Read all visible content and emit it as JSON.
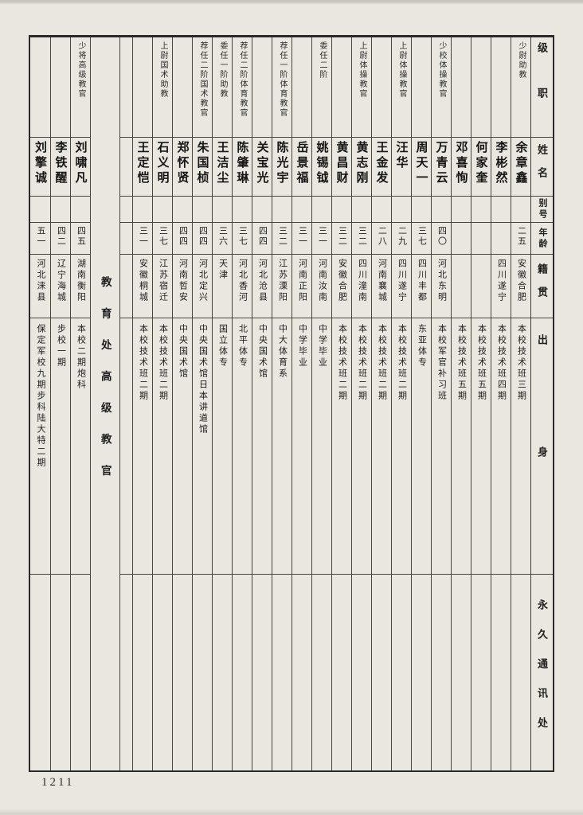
{
  "page": {
    "number": "1211"
  },
  "section_label": "教育处高级教官",
  "header": {
    "rank": "级职",
    "name": "姓名",
    "alias": "别号",
    "age": "年龄",
    "native": "籍贯",
    "origin": "出身",
    "address": "永久通讯处"
  },
  "table": {
    "columns": [
      {
        "type": "header"
      },
      {
        "type": "person",
        "rank": "少尉助教",
        "name": "余章鑫",
        "alias": "",
        "age": "二五",
        "native": "安徽合肥",
        "origin": "本校技术班三期",
        "address": ""
      },
      {
        "type": "person",
        "rank": "",
        "name": "李彬然",
        "alias": "",
        "age": "",
        "native": "四川遂宁",
        "origin": "本校技术班四期",
        "address": ""
      },
      {
        "type": "person",
        "rank": "",
        "name": "何家奎",
        "alias": "",
        "age": "",
        "native": "",
        "origin": "本校技术班五期",
        "address": ""
      },
      {
        "type": "person",
        "rank": "",
        "name": "邓喜恂",
        "alias": "",
        "age": "",
        "native": "",
        "origin": "本校技术班五期",
        "address": ""
      },
      {
        "type": "person",
        "rank": "少校体操教官",
        "name": "万青云",
        "alias": "",
        "age": "四〇",
        "native": "河北东明",
        "origin": "本校军官补习班",
        "address": ""
      },
      {
        "type": "person",
        "rank": "",
        "name": "周天一",
        "alias": "",
        "age": "三七",
        "native": "四川丰都",
        "origin": "东亚体专",
        "address": ""
      },
      {
        "type": "person",
        "rank": "上尉体操教官",
        "name": "汪华",
        "alias": "",
        "age": "二九",
        "native": "四川遂宁",
        "origin": "本校技术班二期",
        "address": ""
      },
      {
        "type": "person",
        "rank": "",
        "name": "王金发",
        "alias": "",
        "age": "二八",
        "native": "河南襄城",
        "origin": "本校技术班二期",
        "address": ""
      },
      {
        "type": "person",
        "rank": "上尉体操教官",
        "name": "黄志刚",
        "alias": "",
        "age": "三二",
        "native": "四川潼南",
        "origin": "本校技术班二期",
        "address": ""
      },
      {
        "type": "person",
        "rank": "",
        "name": "黄昌财",
        "alias": "",
        "age": "三二",
        "native": "安徽合肥",
        "origin": "本校技术班二期",
        "address": ""
      },
      {
        "type": "person",
        "rank": "委任二阶",
        "name": "姚锡钺",
        "alias": "",
        "age": "三一",
        "native": "河南汝南",
        "origin": "中学毕业",
        "address": ""
      },
      {
        "type": "person",
        "rank": "",
        "name": "岳景福",
        "alias": "",
        "age": "三一",
        "native": "河南正阳",
        "origin": "中学毕业",
        "address": ""
      },
      {
        "type": "person",
        "rank": "荐任一阶体育教官",
        "name": "陈光宇",
        "alias": "",
        "age": "三二",
        "native": "江苏溧阳",
        "origin": "中大体育系",
        "address": ""
      },
      {
        "type": "person",
        "rank": "",
        "name": "关宝光",
        "alias": "",
        "age": "四四",
        "native": "河北沧县",
        "origin": "中央国术馆",
        "address": ""
      },
      {
        "type": "person",
        "rank": "荐任二阶体育教官",
        "name": "陈肇琳",
        "alias": "",
        "age": "三七",
        "native": "河北香河",
        "origin": "北平体专",
        "address": ""
      },
      {
        "type": "person",
        "rank": "委任一阶助教",
        "name": "王洁尘",
        "alias": "",
        "age": "三六",
        "native": "天津",
        "origin": "国立体专",
        "address": ""
      },
      {
        "type": "person",
        "rank": "荐任二阶国术教官",
        "name": "朱国桢",
        "alias": "",
        "age": "四四",
        "native": "河北定兴",
        "origin": "中央国术馆日本讲道馆",
        "address": ""
      },
      {
        "type": "person",
        "rank": "",
        "name": "郑怀贤",
        "alias": "",
        "age": "四四",
        "native": "河南哲安",
        "origin": "中央国术馆",
        "address": ""
      },
      {
        "type": "person",
        "rank": "上尉国术助教",
        "name": "石义明",
        "alias": "",
        "age": "三七",
        "native": "江苏宿迁",
        "origin": "本校技术班二期",
        "address": ""
      },
      {
        "type": "person",
        "rank": "",
        "name": "王定恺",
        "alias": "",
        "age": "三一",
        "native": "安徽桐城",
        "origin": "本校技术班二期",
        "address": ""
      },
      {
        "type": "spacer"
      },
      {
        "type": "section"
      },
      {
        "type": "person",
        "rank": "少将高级教官",
        "name": "刘啸凡",
        "alias": "",
        "age": "四五",
        "native": "湖南衡阳",
        "origin": "本校二期炮科",
        "address": ""
      },
      {
        "type": "person",
        "rank": "",
        "name": "李铁醒",
        "alias": "",
        "age": "四二",
        "native": "辽宁海城",
        "origin": "步校一期",
        "address": ""
      },
      {
        "type": "person",
        "rank": "",
        "name": "刘擎诚",
        "alias": "",
        "age": "五一",
        "native": "河北涞县",
        "origin": "保定军校九期步科陆大特二期",
        "address": ""
      }
    ]
  }
}
